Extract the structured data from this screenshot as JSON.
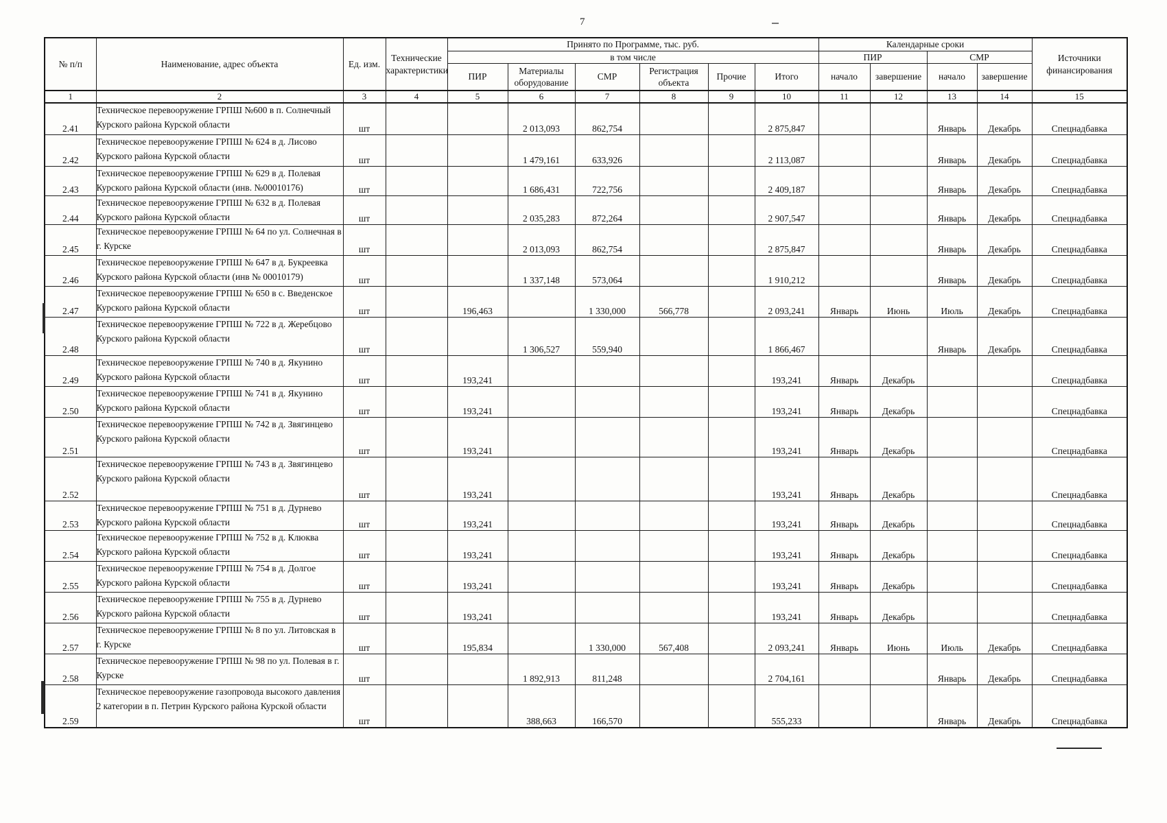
{
  "page": {
    "number": "7"
  },
  "table": {
    "header": {
      "col_num": "№ п/п",
      "col_name": "Наименование, адрес объекта",
      "col_unit": "Ед. изм.",
      "col_tech": "Технические характеристики",
      "group_program": "Принято по Программе, тыс. руб.",
      "group_including": "в том числе",
      "group_calendar": "Календарные сроки",
      "cal_pir": "ПИР",
      "cal_smr": "СМР",
      "col_pir": "ПИР",
      "col_materials": "Материалы оборудование",
      "col_smr": "СМР",
      "col_reg": "Регистрация объекта",
      "col_other": "Прочие",
      "col_total": "Итого",
      "col_start": "начало",
      "col_end": "завершение",
      "col_fin": "Источники финансирования",
      "col_indices": [
        "1",
        "2",
        "3",
        "4",
        "5",
        "6",
        "7",
        "8",
        "9",
        "10",
        "11",
        "12",
        "13",
        "14",
        "15"
      ]
    },
    "rows": [
      {
        "num": "2.41",
        "name": "Техническое перевооружение ГРПШ №600 в п. Солнечный Курского района Курской области",
        "unit": "шт",
        "tech": "",
        "pir": "",
        "materials": "2 013,093",
        "smr": "862,754",
        "reg": "",
        "other": "",
        "total": "2 875,847",
        "pir_start": "",
        "pir_end": "",
        "smr_start": "Январь",
        "smr_end": "Декабрь",
        "fin": "Спецнадбавка"
      },
      {
        "num": "2.42",
        "name": "Техническое перевооружение ГРПШ № 624 в д. Лисово Курского района Курской области",
        "unit": "шт",
        "tech": "",
        "pir": "",
        "materials": "1 479,161",
        "smr": "633,926",
        "reg": "",
        "other": "",
        "total": "2 113,087",
        "pir_start": "",
        "pir_end": "",
        "smr_start": "Январь",
        "smr_end": "Декабрь",
        "fin": "Спецнадбавка"
      },
      {
        "num": "2.43",
        "name": "Техническое перевооружение ГРПШ № 629 в д. Полевая Курского района Курской области  (инв. №00010176)",
        "unit": "шт",
        "tech": "",
        "pir": "",
        "materials": "1 686,431",
        "smr": "722,756",
        "reg": "",
        "other": "",
        "total": "2 409,187",
        "pir_start": "",
        "pir_end": "",
        "smr_start": "Январь",
        "smr_end": "Декабрь",
        "fin": "Спецнадбавка"
      },
      {
        "num": "2.44",
        "name": "Техническое перевооружение ГРПШ № 632 в д. Полевая Курского района Курской области",
        "unit": "шт",
        "tech": "",
        "pir": "",
        "materials": "2 035,283",
        "smr": "872,264",
        "reg": "",
        "other": "",
        "total": "2 907,547",
        "pir_start": "",
        "pir_end": "",
        "smr_start": "Январь",
        "smr_end": "Декабрь",
        "fin": "Спецнадбавка"
      },
      {
        "num": "2.45",
        "name": "Техническое перевооружение ГРПШ № 64 по ул. Солнечная в г. Курске",
        "unit": "шт",
        "tech": "",
        "pir": "",
        "materials": "2 013,093",
        "smr": "862,754",
        "reg": "",
        "other": "",
        "total": "2 875,847",
        "pir_start": "",
        "pir_end": "",
        "smr_start": "Январь",
        "smr_end": "Декабрь",
        "fin": "Спецнадбавка"
      },
      {
        "num": "2.46",
        "name": "Техническое перевооружение ГРПШ № 647  в д. Букреевка Курского района Курской области (инв № 00010179)",
        "unit": "шт",
        "tech": "",
        "pir": "",
        "materials": "1 337,148",
        "smr": "573,064",
        "reg": "",
        "other": "",
        "total": "1 910,212",
        "pir_start": "",
        "pir_end": "",
        "smr_start": "Январь",
        "smr_end": "Декабрь",
        "fin": "Спецнадбавка"
      },
      {
        "num": "2.47",
        "name": "Техническое перевооружение ГРПШ № 650 в с. Введенское Курского района Курской области",
        "unit": "шт",
        "tech": "",
        "pir": "196,463",
        "materials": "",
        "smr": "1 330,000",
        "reg": "566,778",
        "other": "",
        "total": "2 093,241",
        "pir_start": "Январь",
        "pir_end": "Июнь",
        "smr_start": "Июль",
        "smr_end": "Декабрь",
        "fin": "Спецнадбавка"
      },
      {
        "num": "2.48",
        "name": "Техническое перевооружение ГРПШ № 722 в д.  Жеребцово Курского района Курской области",
        "unit": "шт",
        "tech": "",
        "pir": "",
        "materials": "1 306,527",
        "smr": "559,940",
        "reg": "",
        "other": "",
        "total": "1 866,467",
        "pir_start": "",
        "pir_end": "",
        "smr_start": "Январь",
        "smr_end": "Декабрь",
        "fin": "Спецнадбавка"
      },
      {
        "num": "2.49",
        "name": "Техническое перевооружение ГРПШ № 740 в д. Якунино Курского района  Курской области",
        "unit": "шт",
        "tech": "",
        "pir": "193,241",
        "materials": "",
        "smr": "",
        "reg": "",
        "other": "",
        "total": "193,241",
        "pir_start": "Январь",
        "pir_end": "Декабрь",
        "smr_start": "",
        "smr_end": "",
        "fin": "Спецнадбавка"
      },
      {
        "num": "2.50",
        "name": "Техническое перевооружение ГРПШ № 741 в д.  Якунино Курского района Курской области",
        "unit": "шт",
        "tech": "",
        "pir": "193,241",
        "materials": "",
        "smr": "",
        "reg": "",
        "other": "",
        "total": "193,241",
        "pir_start": "Январь",
        "pir_end": "Декабрь",
        "smr_start": "",
        "smr_end": "",
        "fin": "Спецнадбавка"
      },
      {
        "num": "2.51",
        "name": "Техническое перевооружение ГРПШ № 742 в д.  Звягинцево Курского района  Курской области",
        "unit": "шт",
        "tech": "",
        "pir": "193,241",
        "materials": "",
        "smr": "",
        "reg": "",
        "other": "",
        "total": "193,241",
        "pir_start": "Январь",
        "pir_end": "Декабрь",
        "smr_start": "",
        "smr_end": "",
        "fin": "Спецнадбавка"
      },
      {
        "num": "2.52",
        "name": "Техническое перевооружение ГРПШ № 743 в  д.  Звягинцево Курского района Курской области",
        "unit": "шт",
        "tech": "",
        "pir": "193,241",
        "materials": "",
        "smr": "",
        "reg": "",
        "other": "",
        "total": "193,241",
        "pir_start": "Январь",
        "pir_end": "Декабрь",
        "smr_start": "",
        "smr_end": "",
        "fin": "Спецнадбавка"
      },
      {
        "num": "2.53",
        "name": "Техническое перевооружение ГРПШ № 751 в д. Дурнево Курского района Курской области",
        "unit": "шт",
        "tech": "",
        "pir": "193,241",
        "materials": "",
        "smr": "",
        "reg": "",
        "other": "",
        "total": "193,241",
        "pir_start": "Январь",
        "pir_end": "Декабрь",
        "smr_start": "",
        "smr_end": "",
        "fin": "Спецнадбавка"
      },
      {
        "num": "2.54",
        "name": "Техническое перевооружение ГРПШ № 752 в д. Клюква Курского района Курской области",
        "unit": "шт",
        "tech": "",
        "pir": "193,241",
        "materials": "",
        "smr": "",
        "reg": "",
        "other": "",
        "total": "193,241",
        "pir_start": "Январь",
        "pir_end": "Декабрь",
        "smr_start": "",
        "smr_end": "",
        "fin": "Спецнадбавка"
      },
      {
        "num": "2.55",
        "name": "Техническое перевооружение ГРПШ № 754 в д. Долгое Курского района Курской области",
        "unit": "шт",
        "tech": "",
        "pir": "193,241",
        "materials": "",
        "smr": "",
        "reg": "",
        "other": "",
        "total": "193,241",
        "pir_start": "Январь",
        "pir_end": "Декабрь",
        "smr_start": "",
        "smr_end": "",
        "fin": "Спецнадбавка"
      },
      {
        "num": "2.56",
        "name": "Техническое перевооружение ГРПШ № 755 в д. Дурнево Курского района Курской области",
        "unit": "шт",
        "tech": "",
        "pir": "193,241",
        "materials": "",
        "smr": "",
        "reg": "",
        "other": "",
        "total": "193,241",
        "pir_start": "Январь",
        "pir_end": "Декабрь",
        "smr_start": "",
        "smr_end": "",
        "fin": "Спецнадбавка"
      },
      {
        "num": "2.57",
        "name": "Техническое перевооружение ГРПШ № 8 по ул. Литовская в г. Курске",
        "unit": "шт",
        "tech": "",
        "pir": "195,834",
        "materials": "",
        "smr": "1 330,000",
        "reg": "567,408",
        "other": "",
        "total": "2 093,241",
        "pir_start": "Январь",
        "pir_end": "Июнь",
        "smr_start": "Июль",
        "smr_end": "Декабрь",
        "fin": "Спецнадбавка"
      },
      {
        "num": "2.58",
        "name": "Техническое перевооружение ГРПШ № 98  по ул. Полевая в г. Курске",
        "unit": "шт",
        "tech": "",
        "pir": "",
        "materials": "1 892,913",
        "smr": "811,248",
        "reg": "",
        "other": "",
        "total": "2 704,161",
        "pir_start": "",
        "pir_end": "",
        "smr_start": "Январь",
        "smr_end": "Декабрь",
        "fin": "Спецнадбавка"
      },
      {
        "num": "2.59",
        "name": "Техническое перевооружение газопровода  высокого давления 2 категории в п.  Петрин Курского района Курской области",
        "unit": "шт",
        "tech": "",
        "pir": "",
        "materials": "388,663",
        "smr": "166,570",
        "reg": "",
        "other": "",
        "total": "555,233",
        "pir_start": "",
        "pir_end": "",
        "smr_start": "Январь",
        "smr_end": "Декабрь",
        "fin": "Спецнадбавка"
      }
    ]
  }
}
